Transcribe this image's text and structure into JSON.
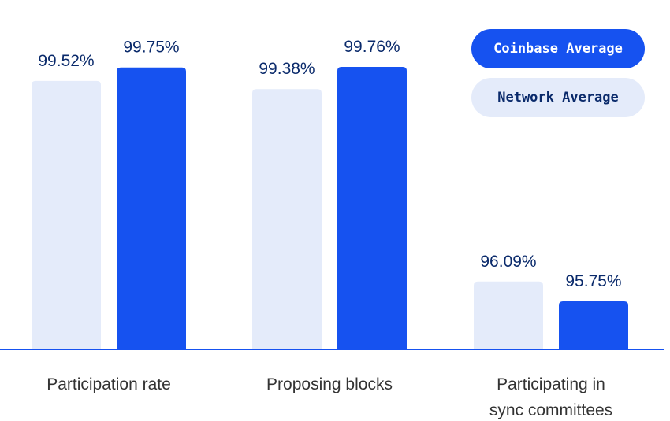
{
  "chart_data": {
    "type": "bar",
    "categories": [
      "Participation rate",
      "Proposing blocks",
      "Participating in\nsync committees"
    ],
    "series": [
      {
        "name": "Network Average",
        "values": [
          99.52,
          99.38,
          96.09
        ],
        "labels": [
          "99.52%",
          "99.38%",
          "96.09%"
        ],
        "color": "#E4EBFA"
      },
      {
        "name": "Coinbase Average",
        "values": [
          99.75,
          99.76,
          95.75
        ],
        "labels": [
          "99.75%",
          "99.76%",
          "95.75%"
        ],
        "color": "#1652F0"
      }
    ],
    "ylim": [
      94.93,
      99.76
    ],
    "grid": false,
    "legend_position": "top-right",
    "label_color": "#0A2A6B",
    "axis_color": "#1652F0"
  }
}
